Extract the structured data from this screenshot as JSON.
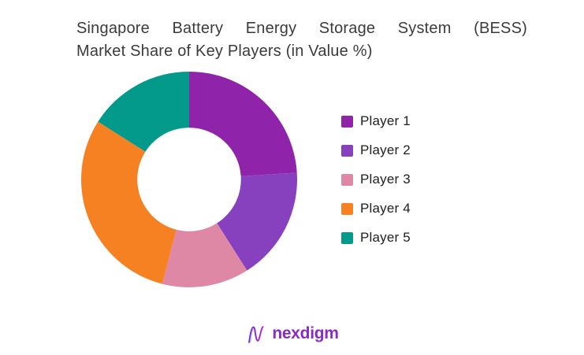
{
  "title": {
    "line1": "Singapore Battery Energy Storage System (BESS)",
    "line2": "Market Share of Key Players (in Value %)"
  },
  "chart_data": {
    "type": "pie",
    "subtype": "donut",
    "title": "Singapore Battery Energy Storage System (BESS) Market Share of Key Players (in Value %)",
    "categories": [
      "Player 1",
      "Player 2",
      "Player 3",
      "Player 4",
      "Player 5"
    ],
    "values": [
      24,
      17,
      13,
      30,
      16
    ],
    "unit": "percent of market value",
    "colors": [
      "#8f23a9",
      "#8841be",
      "#df88a5",
      "#f58122",
      "#039a8c"
    ],
    "start_angle_deg": 0,
    "direction": "clockwise",
    "inner_radius_ratio": 0.48,
    "legend_position": "right",
    "data_labels": false
  },
  "footer": {
    "logo_text": "nexdigm",
    "logo_icon": "nexdigm-wave-n-icon",
    "logo_color": "#8a2bc2",
    "logo_gradient": [
      "#5b2edc",
      "#c11dbe"
    ]
  }
}
